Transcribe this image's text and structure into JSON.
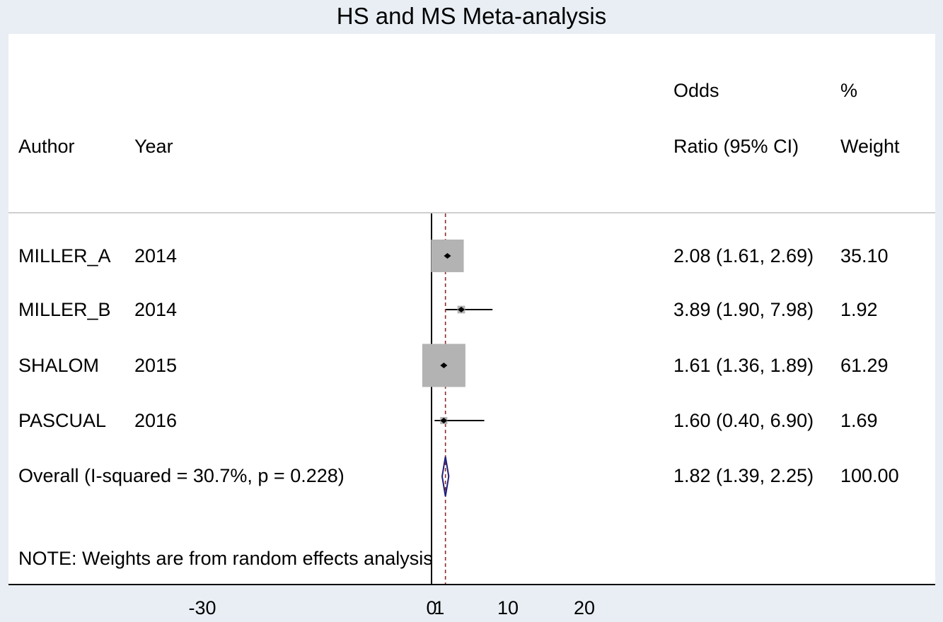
{
  "chart_data": {
    "type": "forest",
    "title": "HS and MS Meta-analysis",
    "headers": {
      "author": "Author",
      "year": "Year",
      "or_line1": "Odds",
      "or_line2": "Ratio (95% CI)",
      "weight_line1": "%",
      "weight_line2": "Weight"
    },
    "studies": [
      {
        "author": "MILLER_A",
        "year": "2014",
        "or": 2.08,
        "lo": 1.61,
        "hi": 2.69,
        "weight": 35.1,
        "ci_text": "2.08 (1.61, 2.69)",
        "weight_text": "35.10"
      },
      {
        "author": "MILLER_B",
        "year": "2014",
        "or": 3.89,
        "lo": 1.9,
        "hi": 7.98,
        "weight": 1.92,
        "ci_text": "3.89 (1.90, 7.98)",
        "weight_text": "1.92"
      },
      {
        "author": "SHALOM",
        "year": "2015",
        "or": 1.61,
        "lo": 1.36,
        "hi": 1.89,
        "weight": 61.29,
        "ci_text": "1.61 (1.36, 1.89)",
        "weight_text": "61.29"
      },
      {
        "author": "PASCUAL",
        "year": "2016",
        "or": 1.6,
        "lo": 0.4,
        "hi": 6.9,
        "weight": 1.69,
        "ci_text": "1.60 (0.40, 6.90)",
        "weight_text": "1.69"
      }
    ],
    "overall": {
      "label": "Overall  (I-squared = 30.7%, p = 0.228)",
      "or": 1.82,
      "lo": 1.39,
      "hi": 2.25,
      "ci_text": "1.82 (1.39, 2.25)",
      "weight_text": "100.00"
    },
    "note": "NOTE: Weights are from random effects analysis",
    "x_ticks": [
      {
        "value": -30,
        "label": "-30"
      },
      {
        "value": 0,
        "label": "0"
      },
      {
        "value": 1,
        "label": "1"
      },
      {
        "value": 10,
        "label": "10"
      },
      {
        "value": 20,
        "label": "20"
      }
    ],
    "null_line": 0,
    "colors": {
      "box": "#b3b3b3",
      "diamond": "#1f1f7a",
      "pooled_line": "#8b2b2b",
      "line": "#000000"
    }
  }
}
